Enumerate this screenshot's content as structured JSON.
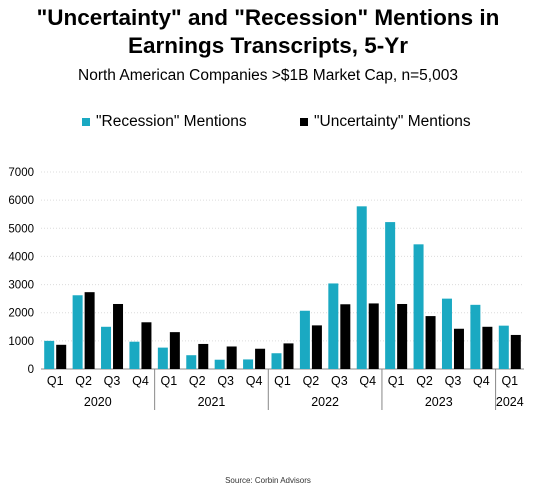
{
  "title_line1": "\"Uncertainty\" and \"Recession\" Mentions in",
  "title_line2": "Earnings Transcripts, 5-Yr",
  "subtitle": "North American Companies >$1B Market Cap, n=5,003",
  "source": "Source: Corbin Advisors",
  "chart_data": {
    "type": "bar",
    "title": "\"Uncertainty\" and \"Recession\" Mentions in Earnings Transcripts, 5-Yr",
    "subtitle": "North American Companies >$1B Market Cap, n=5,003",
    "categories": [
      "Q1",
      "Q2",
      "Q3",
      "Q4",
      "Q1",
      "Q2",
      "Q3",
      "Q4",
      "Q1",
      "Q2",
      "Q3",
      "Q4",
      "Q1",
      "Q2",
      "Q3",
      "Q4",
      "Q1"
    ],
    "years": [
      {
        "label": "2020",
        "count": 4
      },
      {
        "label": "2021",
        "count": 4
      },
      {
        "label": "2022",
        "count": 4
      },
      {
        "label": "2023",
        "count": 4
      },
      {
        "label": "2024",
        "count": 1
      }
    ],
    "series": [
      {
        "name": "\"Recession\" Mentions",
        "color": "#1aa9c2",
        "values": [
          1000,
          2620,
          1500,
          970,
          760,
          490,
          330,
          340,
          560,
          2070,
          3040,
          5780,
          5220,
          4430,
          2500,
          2280,
          1540
        ]
      },
      {
        "name": "\"Uncertainty\" Mentions",
        "color": "#000000",
        "values": [
          860,
          2730,
          2310,
          1660,
          1310,
          890,
          800,
          720,
          910,
          1550,
          2300,
          2330,
          2310,
          1880,
          1430,
          1500,
          1210
        ]
      }
    ],
    "ylim": [
      0,
      7000
    ],
    "yticks": [
      0,
      1000,
      2000,
      3000,
      4000,
      5000,
      6000,
      7000
    ],
    "grid": true,
    "legend_position": "top"
  }
}
